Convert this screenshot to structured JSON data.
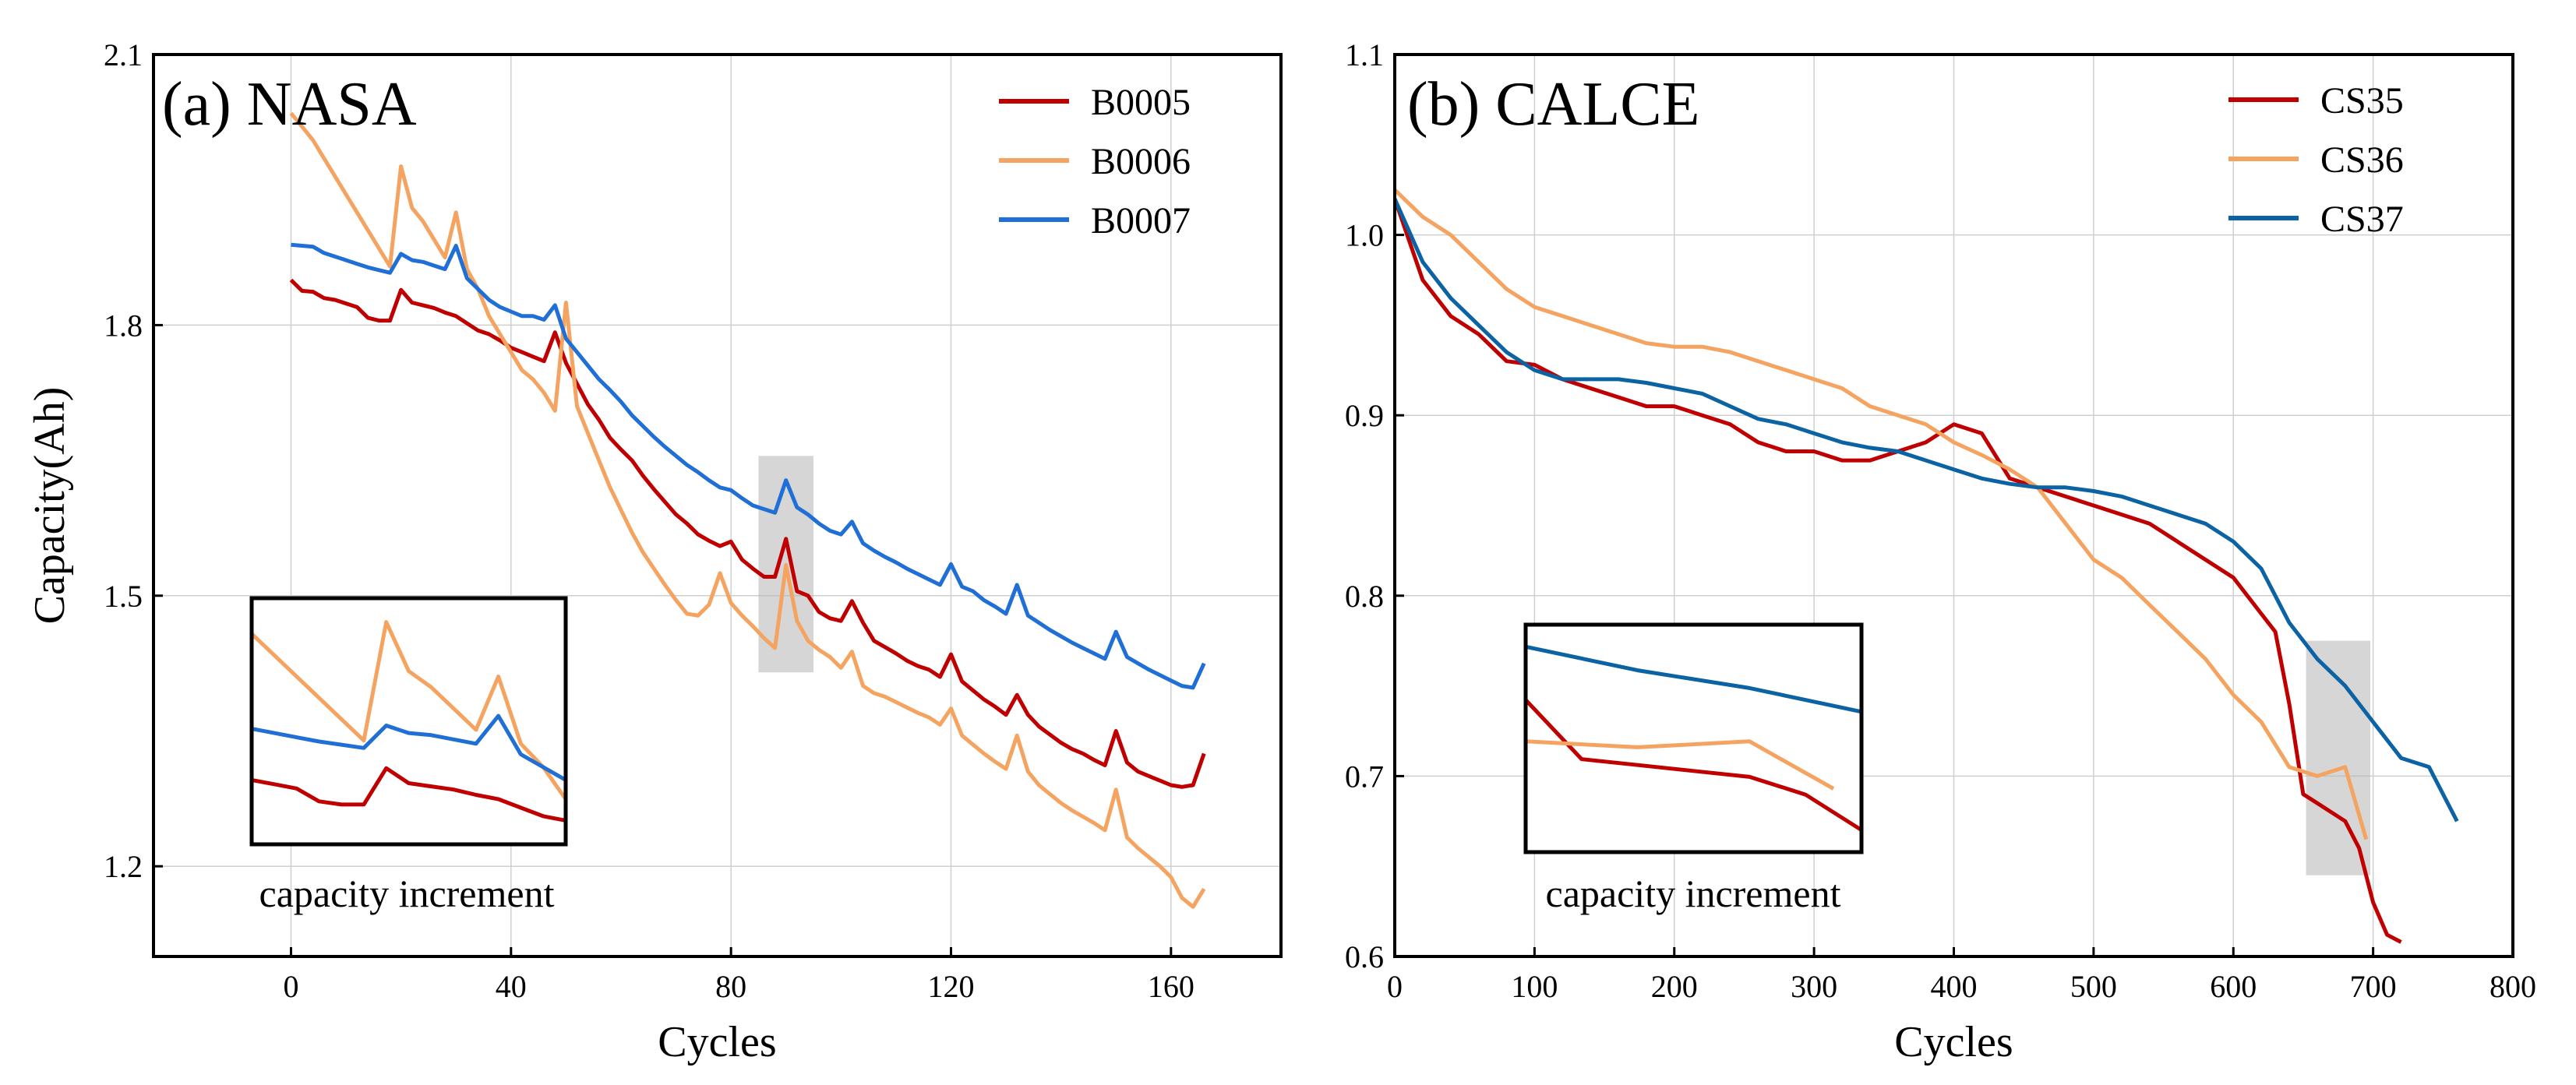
{
  "chart_data": [
    {
      "type": "line",
      "panel_label": "(a) NASA",
      "xlabel": "Cycles",
      "ylabel": "Capacity(Ah)",
      "xlim": [
        -25,
        180
      ],
      "ylim": [
        1.1,
        2.1
      ],
      "xticks": [
        0,
        40,
        80,
        120,
        160
      ],
      "yticks": [
        1.2,
        1.5,
        1.8,
        2.1
      ],
      "grid": true,
      "legend_position": "top-right",
      "highlight_region": {
        "x": [
          85,
          95
        ],
        "y": [
          1.415,
          1.655
        ]
      },
      "inset": {
        "label": "capacity increment",
        "x_range": [
          8,
          36
        ]
      },
      "series": [
        {
          "name": "B0005",
          "color": "#c00000",
          "x": [
            0,
            2,
            4,
            6,
            8,
            10,
            12,
            14,
            16,
            18,
            20,
            22,
            24,
            26,
            28,
            30,
            32,
            34,
            36,
            38,
            40,
            42,
            44,
            46,
            48,
            50,
            52,
            54,
            56,
            58,
            60,
            62,
            64,
            66,
            68,
            70,
            72,
            74,
            76,
            78,
            80,
            82,
            84,
            86,
            88,
            90,
            92,
            94,
            96,
            98,
            100,
            102,
            104,
            106,
            108,
            110,
            112,
            114,
            116,
            118,
            120,
            122,
            124,
            126,
            128,
            130,
            132,
            134,
            136,
            138,
            140,
            142,
            144,
            146,
            148,
            150,
            152,
            154,
            156,
            158,
            160,
            162,
            164,
            166
          ],
          "values": [
            1.85,
            1.838,
            1.837,
            1.83,
            1.828,
            1.824,
            1.82,
            1.808,
            1.805,
            1.805,
            1.839,
            1.825,
            1.822,
            1.819,
            1.814,
            1.81,
            1.802,
            1.794,
            1.79,
            1.783,
            1.775,
            1.77,
            1.765,
            1.76,
            1.792,
            1.758,
            1.735,
            1.712,
            1.695,
            1.675,
            1.662,
            1.65,
            1.633,
            1.618,
            1.604,
            1.59,
            1.58,
            1.568,
            1.561,
            1.555,
            1.56,
            1.54,
            1.53,
            1.521,
            1.521,
            1.563,
            1.505,
            1.5,
            1.482,
            1.475,
            1.472,
            1.494,
            1.47,
            1.45,
            1.443,
            1.436,
            1.428,
            1.422,
            1.418,
            1.41,
            1.435,
            1.405,
            1.395,
            1.385,
            1.377,
            1.368,
            1.39,
            1.368,
            1.355,
            1.346,
            1.337,
            1.33,
            1.325,
            1.318,
            1.312,
            1.35,
            1.315,
            1.305,
            1.3,
            1.295,
            1.29,
            1.288,
            1.29,
            1.325
          ]
        },
        {
          "name": "B0006",
          "color": "#f4a460",
          "x": [
            0,
            2,
            4,
            6,
            8,
            10,
            12,
            14,
            16,
            18,
            20,
            22,
            24,
            26,
            28,
            30,
            32,
            34,
            36,
            38,
            40,
            42,
            44,
            46,
            48,
            50,
            52,
            54,
            56,
            58,
            60,
            62,
            64,
            66,
            68,
            70,
            72,
            74,
            76,
            78,
            80,
            82,
            84,
            86,
            88,
            90,
            92,
            94,
            96,
            98,
            100,
            102,
            104,
            106,
            108,
            110,
            112,
            114,
            116,
            118,
            120,
            122,
            124,
            126,
            128,
            130,
            132,
            134,
            136,
            138,
            140,
            142,
            144,
            146,
            148,
            150,
            152,
            154,
            156,
            158,
            160,
            162,
            164,
            166
          ],
          "values": [
            2.035,
            2.02,
            2.005,
            1.985,
            1.965,
            1.945,
            1.925,
            1.905,
            1.885,
            1.865,
            1.976,
            1.93,
            1.915,
            1.895,
            1.875,
            1.925,
            1.862,
            1.84,
            1.81,
            1.79,
            1.77,
            1.75,
            1.74,
            1.725,
            1.705,
            1.825,
            1.71,
            1.68,
            1.65,
            1.62,
            1.595,
            1.57,
            1.548,
            1.53,
            1.512,
            1.495,
            1.48,
            1.478,
            1.49,
            1.525,
            1.492,
            1.478,
            1.466,
            1.453,
            1.442,
            1.534,
            1.472,
            1.45,
            1.44,
            1.432,
            1.42,
            1.438,
            1.4,
            1.392,
            1.388,
            1.382,
            1.376,
            1.37,
            1.365,
            1.357,
            1.375,
            1.345,
            1.335,
            1.325,
            1.316,
            1.308,
            1.345,
            1.305,
            1.29,
            1.28,
            1.27,
            1.262,
            1.255,
            1.248,
            1.24,
            1.285,
            1.232,
            1.22,
            1.21,
            1.2,
            1.188,
            1.165,
            1.155,
            1.175
          ]
        },
        {
          "name": "B0007",
          "color": "#1f6fd6",
          "x": [
            0,
            2,
            4,
            6,
            8,
            10,
            12,
            14,
            16,
            18,
            20,
            22,
            24,
            26,
            28,
            30,
            32,
            34,
            36,
            38,
            40,
            42,
            44,
            46,
            48,
            50,
            52,
            54,
            56,
            58,
            60,
            62,
            64,
            66,
            68,
            70,
            72,
            74,
            76,
            78,
            80,
            82,
            84,
            86,
            88,
            90,
            92,
            94,
            96,
            98,
            100,
            102,
            104,
            106,
            108,
            110,
            112,
            114,
            116,
            118,
            120,
            122,
            124,
            126,
            128,
            130,
            132,
            134,
            136,
            138,
            140,
            142,
            144,
            146,
            148,
            150,
            152,
            154,
            156,
            158,
            160,
            162,
            164,
            166
          ],
          "values": [
            1.889,
            1.888,
            1.887,
            1.88,
            1.876,
            1.872,
            1.868,
            1.864,
            1.861,
            1.858,
            1.879,
            1.872,
            1.87,
            1.866,
            1.862,
            1.888,
            1.852,
            1.84,
            1.828,
            1.82,
            1.815,
            1.81,
            1.81,
            1.806,
            1.822,
            1.785,
            1.77,
            1.755,
            1.74,
            1.728,
            1.715,
            1.7,
            1.688,
            1.676,
            1.665,
            1.655,
            1.645,
            1.637,
            1.628,
            1.62,
            1.617,
            1.608,
            1.6,
            1.596,
            1.592,
            1.628,
            1.598,
            1.59,
            1.58,
            1.572,
            1.568,
            1.582,
            1.558,
            1.55,
            1.543,
            1.537,
            1.53,
            1.524,
            1.518,
            1.512,
            1.535,
            1.51,
            1.505,
            1.495,
            1.488,
            1.48,
            1.512,
            1.478,
            1.47,
            1.462,
            1.455,
            1.448,
            1.442,
            1.436,
            1.43,
            1.46,
            1.432,
            1.425,
            1.418,
            1.412,
            1.406,
            1.4,
            1.398,
            1.425
          ]
        }
      ]
    },
    {
      "type": "line",
      "panel_label": "(b) CALCE",
      "xlabel": "Cycles",
      "ylabel": "",
      "xlim": [
        0,
        800
      ],
      "ylim": [
        0.6,
        1.1
      ],
      "xticks": [
        0,
        100,
        200,
        300,
        400,
        500,
        600,
        700,
        800
      ],
      "yticks": [
        0.6,
        0.7,
        0.8,
        0.9,
        1.0,
        1.1
      ],
      "grid": true,
      "legend_position": "top-right",
      "highlight_region": {
        "x": [
          652,
          698
        ],
        "y": [
          0.645,
          0.775
        ]
      },
      "inset": {
        "label": "capacity increment",
        "x_range": [
          640,
          700
        ]
      },
      "series": [
        {
          "name": "CS35",
          "color": "#c00000",
          "x": [
            0,
            20,
            40,
            60,
            80,
            100,
            120,
            140,
            160,
            180,
            200,
            220,
            240,
            260,
            280,
            300,
            320,
            340,
            360,
            380,
            400,
            420,
            440,
            460,
            480,
            500,
            520,
            540,
            560,
            580,
            600,
            620,
            630,
            640,
            650,
            660,
            670,
            680,
            690,
            700,
            710,
            720
          ],
          "values": [
            1.02,
            0.975,
            0.955,
            0.945,
            0.93,
            0.928,
            0.92,
            0.915,
            0.91,
            0.905,
            0.905,
            0.9,
            0.895,
            0.885,
            0.88,
            0.88,
            0.875,
            0.875,
            0.88,
            0.885,
            0.895,
            0.89,
            0.865,
            0.86,
            0.855,
            0.85,
            0.845,
            0.84,
            0.83,
            0.82,
            0.81,
            0.79,
            0.78,
            0.74,
            0.69,
            0.685,
            0.68,
            0.675,
            0.66,
            0.63,
            0.612,
            0.608
          ]
        },
        {
          "name": "CS36",
          "color": "#f4a460",
          "x": [
            0,
            20,
            40,
            60,
            80,
            100,
            120,
            140,
            160,
            180,
            200,
            220,
            240,
            260,
            280,
            300,
            320,
            340,
            360,
            380,
            400,
            420,
            440,
            460,
            480,
            500,
            520,
            540,
            560,
            580,
            600,
            620,
            640,
            660,
            680,
            695
          ],
          "values": [
            1.025,
            1.01,
            1.0,
            0.985,
            0.97,
            0.96,
            0.955,
            0.95,
            0.945,
            0.94,
            0.938,
            0.938,
            0.935,
            0.93,
            0.925,
            0.92,
            0.915,
            0.905,
            0.9,
            0.895,
            0.885,
            0.878,
            0.87,
            0.86,
            0.84,
            0.82,
            0.81,
            0.795,
            0.78,
            0.765,
            0.745,
            0.73,
            0.705,
            0.7,
            0.705,
            0.665
          ]
        },
        {
          "name": "CS37",
          "color": "#0c63a4",
          "x": [
            0,
            20,
            40,
            60,
            80,
            100,
            120,
            140,
            160,
            180,
            200,
            220,
            240,
            260,
            280,
            300,
            320,
            340,
            360,
            380,
            400,
            420,
            440,
            460,
            480,
            500,
            520,
            540,
            560,
            580,
            600,
            620,
            640,
            660,
            680,
            700,
            720,
            740,
            760
          ],
          "values": [
            1.02,
            0.985,
            0.965,
            0.95,
            0.935,
            0.925,
            0.92,
            0.92,
            0.92,
            0.918,
            0.915,
            0.912,
            0.905,
            0.898,
            0.895,
            0.89,
            0.885,
            0.882,
            0.88,
            0.875,
            0.87,
            0.865,
            0.862,
            0.86,
            0.86,
            0.858,
            0.855,
            0.85,
            0.845,
            0.84,
            0.83,
            0.815,
            0.785,
            0.765,
            0.75,
            0.73,
            0.71,
            0.705,
            0.675
          ]
        }
      ]
    }
  ]
}
